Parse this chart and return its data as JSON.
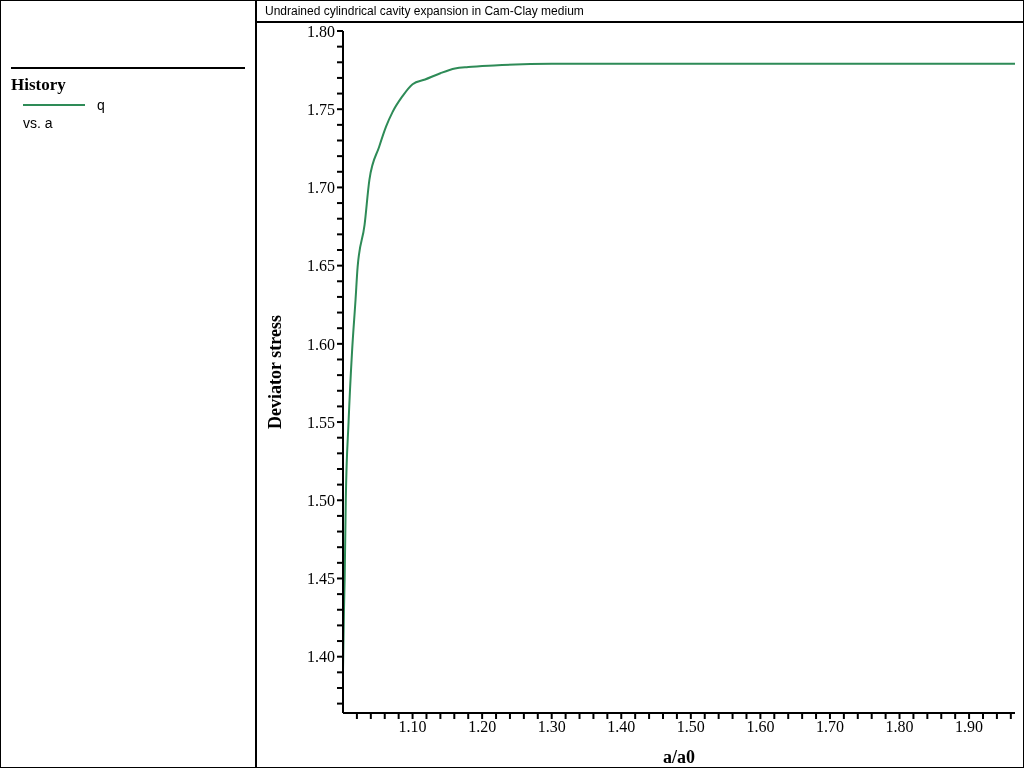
{
  "chart_data": {
    "type": "line",
    "title": "Undrained cylindrical cavity expansion in Cam-Clay medium",
    "xlabel": "a/a0",
    "ylabel": "Deviator stress",
    "legend_title": "History",
    "legend": "left",
    "annotations": [
      "vs. a"
    ],
    "x": [
      1.0,
      1.0014,
      1.0024,
      1.004,
      1.008,
      1.013,
      1.018,
      1.021,
      1.031,
      1.038,
      1.052,
      1.062,
      1.071,
      1.085,
      1.1,
      1.118,
      1.14,
      1.161,
      1.18,
      1.217,
      1.3,
      1.45,
      1.6,
      1.8,
      1.966
    ],
    "series": [
      {
        "name": "q",
        "color": "#2e8b57",
        "values": [
          1.391,
          1.43,
          1.45,
          1.5,
          1.55,
          1.595,
          1.628,
          1.649,
          1.676,
          1.705,
          1.726,
          1.739,
          1.748,
          1.758,
          1.766,
          1.769,
          1.773,
          1.776,
          1.777,
          1.778,
          1.779,
          1.779,
          1.779,
          1.779,
          1.779
        ]
      }
    ],
    "xlim": [
      1.0,
      1.966
    ],
    "ylim": [
      1.364,
      1.8
    ],
    "xticks": [
      {
        "value": 1.02,
        "label": null
      },
      {
        "value": 1.04,
        "label": null
      },
      {
        "value": 1.06,
        "label": null
      },
      {
        "value": 1.08,
        "label": null
      },
      {
        "value": 1.1,
        "label": "1.10"
      },
      {
        "value": 1.12,
        "label": null
      },
      {
        "value": 1.14,
        "label": null
      },
      {
        "value": 1.16,
        "label": null
      },
      {
        "value": 1.18,
        "label": null
      },
      {
        "value": 1.2,
        "label": "1.20"
      },
      {
        "value": 1.22,
        "label": null
      },
      {
        "value": 1.24,
        "label": null
      },
      {
        "value": 1.26,
        "label": null
      },
      {
        "value": 1.28,
        "label": null
      },
      {
        "value": 1.3,
        "label": "1.30"
      },
      {
        "value": 1.32,
        "label": null
      },
      {
        "value": 1.34,
        "label": null
      },
      {
        "value": 1.36,
        "label": null
      },
      {
        "value": 1.38,
        "label": null
      },
      {
        "value": 1.4,
        "label": "1.40"
      },
      {
        "value": 1.42,
        "label": null
      },
      {
        "value": 1.44,
        "label": null
      },
      {
        "value": 1.46,
        "label": null
      },
      {
        "value": 1.48,
        "label": null
      },
      {
        "value": 1.5,
        "label": "1.50"
      },
      {
        "value": 1.52,
        "label": null
      },
      {
        "value": 1.54,
        "label": null
      },
      {
        "value": 1.56,
        "label": null
      },
      {
        "value": 1.58,
        "label": null
      },
      {
        "value": 1.6,
        "label": "1.60"
      },
      {
        "value": 1.62,
        "label": null
      },
      {
        "value": 1.64,
        "label": null
      },
      {
        "value": 1.66,
        "label": null
      },
      {
        "value": 1.68,
        "label": null
      },
      {
        "value": 1.7,
        "label": "1.70"
      },
      {
        "value": 1.72,
        "label": null
      },
      {
        "value": 1.74,
        "label": null
      },
      {
        "value": 1.76,
        "label": null
      },
      {
        "value": 1.78,
        "label": null
      },
      {
        "value": 1.8,
        "label": "1.80"
      },
      {
        "value": 1.82,
        "label": null
      },
      {
        "value": 1.84,
        "label": null
      },
      {
        "value": 1.86,
        "label": null
      },
      {
        "value": 1.88,
        "label": null
      },
      {
        "value": 1.9,
        "label": "1.90"
      },
      {
        "value": 1.92,
        "label": null
      },
      {
        "value": 1.94,
        "label": null
      },
      {
        "value": 1.96,
        "label": null
      }
    ],
    "yticks": [
      {
        "value": 1.37,
        "label": null
      },
      {
        "value": 1.38,
        "label": null
      },
      {
        "value": 1.39,
        "label": null
      },
      {
        "value": 1.4,
        "label": "1.40"
      },
      {
        "value": 1.41,
        "label": null
      },
      {
        "value": 1.42,
        "label": null
      },
      {
        "value": 1.43,
        "label": null
      },
      {
        "value": 1.44,
        "label": null
      },
      {
        "value": 1.45,
        "label": "1.45"
      },
      {
        "value": 1.46,
        "label": null
      },
      {
        "value": 1.47,
        "label": null
      },
      {
        "value": 1.48,
        "label": null
      },
      {
        "value": 1.49,
        "label": null
      },
      {
        "value": 1.5,
        "label": "1.50"
      },
      {
        "value": 1.51,
        "label": null
      },
      {
        "value": 1.52,
        "label": null
      },
      {
        "value": 1.53,
        "label": null
      },
      {
        "value": 1.54,
        "label": null
      },
      {
        "value": 1.55,
        "label": "1.55"
      },
      {
        "value": 1.56,
        "label": null
      },
      {
        "value": 1.57,
        "label": null
      },
      {
        "value": 1.58,
        "label": null
      },
      {
        "value": 1.59,
        "label": null
      },
      {
        "value": 1.6,
        "label": "1.60"
      },
      {
        "value": 1.61,
        "label": null
      },
      {
        "value": 1.62,
        "label": null
      },
      {
        "value": 1.63,
        "label": null
      },
      {
        "value": 1.64,
        "label": null
      },
      {
        "value": 1.65,
        "label": "1.65"
      },
      {
        "value": 1.66,
        "label": null
      },
      {
        "value": 1.67,
        "label": null
      },
      {
        "value": 1.68,
        "label": null
      },
      {
        "value": 1.69,
        "label": null
      },
      {
        "value": 1.7,
        "label": "1.70"
      },
      {
        "value": 1.71,
        "label": null
      },
      {
        "value": 1.72,
        "label": null
      },
      {
        "value": 1.73,
        "label": null
      },
      {
        "value": 1.74,
        "label": null
      },
      {
        "value": 1.75,
        "label": "1.75"
      },
      {
        "value": 1.76,
        "label": null
      },
      {
        "value": 1.77,
        "label": null
      },
      {
        "value": 1.78,
        "label": null
      },
      {
        "value": 1.79,
        "label": null
      },
      {
        "value": 1.8,
        "label": "1.80"
      }
    ],
    "grid": false,
    "marker": "none",
    "line_style": "solid"
  }
}
